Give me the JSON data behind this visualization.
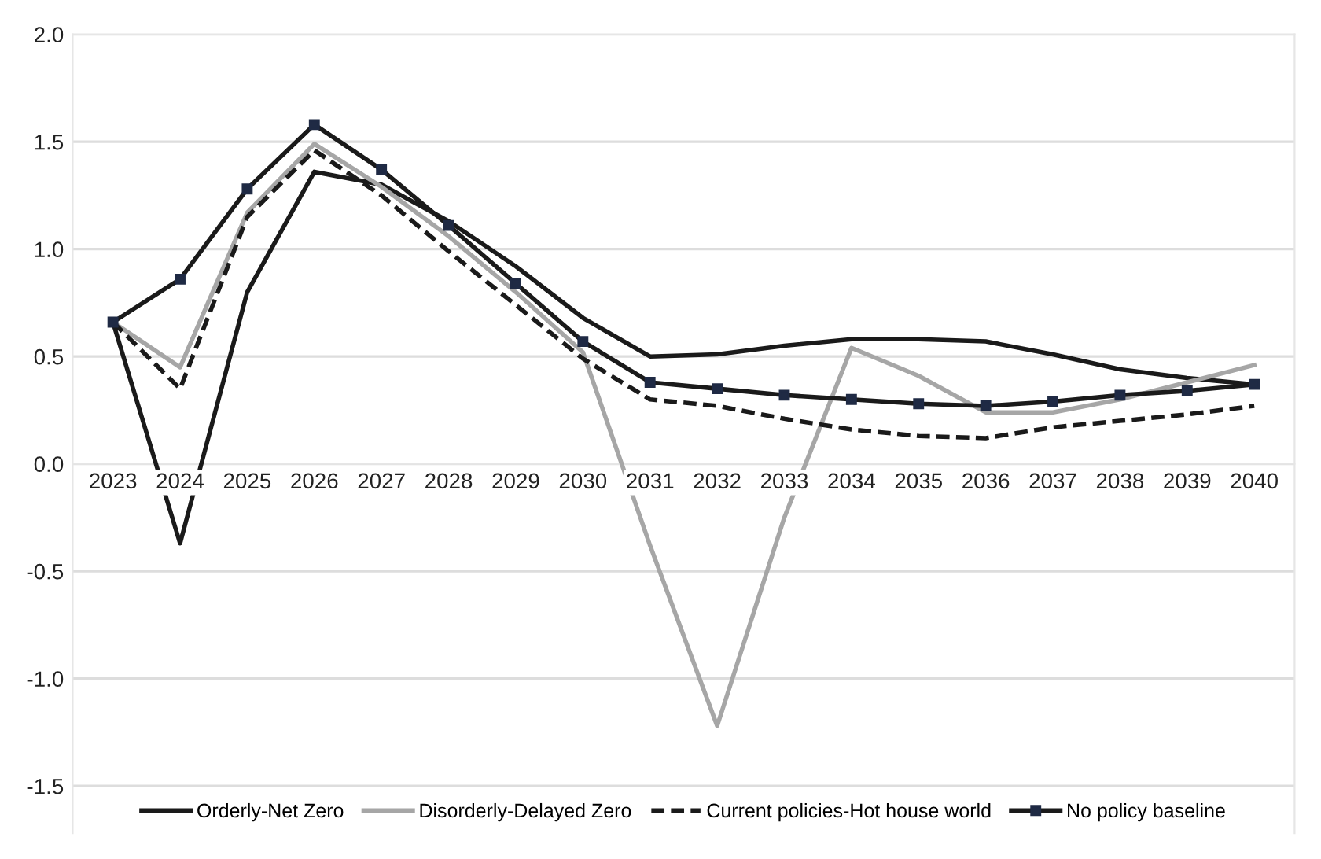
{
  "chart_data": {
    "type": "line",
    "categories": [
      "2023",
      "2024",
      "2025",
      "2026",
      "2027",
      "2028",
      "2029",
      "2030",
      "2031",
      "2032",
      "2033",
      "2034",
      "2035",
      "2036",
      "2037",
      "2038",
      "2039",
      "2040"
    ],
    "series": [
      {
        "name": "Orderly-Net Zero",
        "color": "#1a1a1a",
        "line_style": "solid",
        "marker": "none",
        "values": [
          0.66,
          -0.37,
          0.8,
          1.36,
          1.3,
          1.13,
          0.92,
          0.68,
          0.5,
          0.51,
          0.55,
          0.58,
          0.58,
          0.57,
          0.51,
          0.44,
          0.4,
          0.37
        ]
      },
      {
        "name": "Disorderly-Delayed Zero",
        "color": "#a6a6a6",
        "line_style": "solid",
        "marker": "none",
        "values": [
          0.66,
          0.45,
          1.17,
          1.49,
          1.29,
          1.06,
          0.8,
          0.52,
          -0.38,
          -1.22,
          -0.25,
          0.54,
          0.41,
          0.24,
          0.24,
          0.3,
          0.38,
          0.46
        ]
      },
      {
        "name": "Current policies-Hot house world",
        "color": "#1a1a1a",
        "line_style": "dashed",
        "marker": "none",
        "values": [
          0.66,
          0.35,
          1.15,
          1.46,
          1.25,
          0.99,
          0.74,
          0.49,
          0.3,
          0.27,
          0.21,
          0.16,
          0.13,
          0.12,
          0.17,
          0.2,
          0.23,
          0.27
        ]
      },
      {
        "name": "No policy baseline",
        "color": "#1a1a1a",
        "line_style": "solid",
        "marker": "square",
        "values": [
          0.66,
          0.86,
          1.28,
          1.58,
          1.37,
          1.11,
          0.84,
          0.57,
          0.38,
          0.35,
          0.32,
          0.3,
          0.28,
          0.27,
          0.29,
          0.32,
          0.34,
          0.37
        ]
      }
    ],
    "ylim": [
      -1.72,
      2.0
    ],
    "yticks": [
      {
        "value": 2.0,
        "label": "2.0"
      },
      {
        "value": 1.5,
        "label": "1.5"
      },
      {
        "value": 1.0,
        "label": "1.0"
      },
      {
        "value": 0.5,
        "label": "0.5"
      },
      {
        "value": 0.0,
        "label": "0.0"
      },
      {
        "value": -0.5,
        "label": "-0.5"
      },
      {
        "value": -1.0,
        "label": "-1.0"
      },
      {
        "value": -1.5,
        "label": "-1.5"
      }
    ],
    "grid": "y",
    "legend": "bottom"
  }
}
